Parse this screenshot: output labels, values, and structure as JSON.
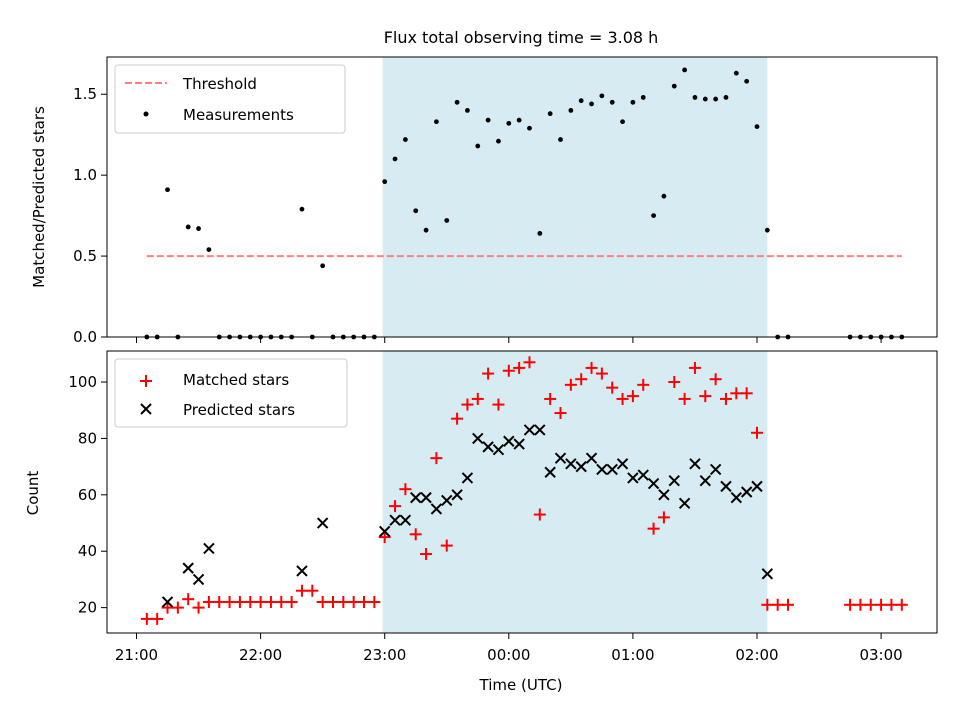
{
  "figure": {
    "title": "Flux total observing time = 3.08 h",
    "xlabel": "Time (UTC)",
    "xticks": [
      "21:00",
      "22:00",
      "23:00",
      "00:00",
      "01:00",
      "02:00",
      "03:00"
    ],
    "shade_color": "#add8e6",
    "shade_range": [
      "22:59",
      "02:05"
    ]
  },
  "chart_data": [
    {
      "type": "scatter",
      "ylabel": "Matched/Predicted stars",
      "ylim": [
        0,
        1.73
      ],
      "yticks": [
        0.0,
        0.5,
        1.0,
        1.5
      ],
      "ytick_labels": [
        "0.0",
        "0.5",
        "1.0",
        "1.5"
      ],
      "legend_position": "top-left",
      "threshold": {
        "name": "Threshold",
        "value": 0.5,
        "x_range": [
          "21:05",
          "03:10"
        ],
        "color": "#ff7f7f",
        "style": "dashed"
      },
      "series": [
        {
          "name": "Measurements",
          "color": "#000000",
          "marker": "dot",
          "x": [
            "21:05",
            "21:10",
            "21:15",
            "21:20",
            "21:25",
            "21:30",
            "21:35",
            "21:40",
            "21:45",
            "21:50",
            "21:55",
            "22:00",
            "22:05",
            "22:10",
            "22:15",
            "22:20",
            "22:25",
            "22:30",
            "22:35",
            "22:40",
            "22:45",
            "22:50",
            "22:55",
            "23:00",
            "23:05",
            "23:10",
            "23:15",
            "23:20",
            "23:25",
            "23:30",
            "23:35",
            "23:40",
            "23:45",
            "23:50",
            "23:55",
            "00:00",
            "00:05",
            "00:10",
            "00:15",
            "00:20",
            "00:25",
            "00:30",
            "00:35",
            "00:40",
            "00:45",
            "00:50",
            "00:55",
            "01:00",
            "01:05",
            "01:10",
            "01:15",
            "01:20",
            "01:25",
            "01:30",
            "01:35",
            "01:40",
            "01:45",
            "01:50",
            "01:55",
            "02:00",
            "02:05",
            "02:10",
            "02:15",
            "02:45",
            "02:50",
            "02:55",
            "03:00",
            "03:05",
            "03:10"
          ],
          "y": [
            0,
            0,
            0.91,
            0,
            0.68,
            0.67,
            0.54,
            0,
            0,
            0,
            0,
            0,
            0,
            0,
            0,
            0.79,
            0,
            0.44,
            0,
            0,
            0,
            0,
            0,
            0.96,
            1.1,
            1.22,
            0.78,
            0.66,
            1.33,
            0.72,
            1.45,
            1.4,
            1.18,
            1.34,
            1.21,
            1.32,
            1.34,
            1.29,
            0.64,
            1.38,
            1.22,
            1.4,
            1.46,
            1.44,
            1.49,
            1.45,
            1.33,
            1.45,
            1.48,
            0.75,
            0.87,
            1.55,
            1.65,
            1.48,
            1.47,
            1.47,
            1.48,
            1.63,
            1.58,
            1.3,
            0.66,
            0,
            0,
            0,
            0,
            0,
            0,
            0,
            0
          ]
        }
      ]
    },
    {
      "type": "scatter",
      "ylabel": "Count",
      "ylim": [
        11,
        111
      ],
      "yticks": [
        20,
        40,
        60,
        80,
        100
      ],
      "ytick_labels": [
        "20",
        "40",
        "60",
        "80",
        "100"
      ],
      "legend_position": "top-left",
      "series": [
        {
          "name": "Matched stars",
          "color": "#ff0000",
          "marker": "plus",
          "x": [
            "21:05",
            "21:10",
            "21:15",
            "21:20",
            "21:25",
            "21:30",
            "21:35",
            "21:40",
            "21:45",
            "21:50",
            "21:55",
            "22:00",
            "22:05",
            "22:10",
            "22:15",
            "22:20",
            "22:25",
            "22:30",
            "22:35",
            "22:40",
            "22:45",
            "22:50",
            "22:55",
            "23:00",
            "23:05",
            "23:10",
            "23:15",
            "23:20",
            "23:25",
            "23:30",
            "23:35",
            "23:40",
            "23:45",
            "23:50",
            "23:55",
            "00:00",
            "00:05",
            "00:10",
            "00:15",
            "00:20",
            "00:25",
            "00:30",
            "00:35",
            "00:40",
            "00:45",
            "00:50",
            "00:55",
            "01:00",
            "01:05",
            "01:10",
            "01:15",
            "01:20",
            "01:25",
            "01:30",
            "01:35",
            "01:40",
            "01:45",
            "01:50",
            "01:55",
            "02:00",
            "02:05",
            "02:10",
            "02:15",
            "02:45",
            "02:50",
            "02:55",
            "03:00",
            "03:05",
            "03:10"
          ],
          "y": [
            16,
            16,
            20,
            20,
            23,
            20,
            22,
            22,
            22,
            22,
            22,
            22,
            22,
            22,
            22,
            26,
            26,
            22,
            22,
            22,
            22,
            22,
            22,
            45,
            56,
            62,
            46,
            39,
            73,
            42,
            87,
            92,
            94,
            103,
            92,
            104,
            105,
            107,
            53,
            94,
            89,
            99,
            101,
            105,
            103,
            98,
            94,
            95,
            99,
            48,
            52,
            100,
            94,
            105,
            95,
            101,
            94,
            96,
            96,
            82,
            21,
            21,
            21,
            21,
            21,
            21,
            21,
            21,
            21
          ]
        },
        {
          "name": "Predicted stars",
          "color": "#000000",
          "marker": "x",
          "x": [
            "21:15",
            "21:25",
            "21:30",
            "21:35",
            "22:20",
            "22:30",
            "23:00",
            "23:05",
            "23:10",
            "23:15",
            "23:20",
            "23:25",
            "23:30",
            "23:35",
            "23:40",
            "23:45",
            "23:50",
            "23:55",
            "00:00",
            "00:05",
            "00:10",
            "00:15",
            "00:20",
            "00:25",
            "00:30",
            "00:35",
            "00:40",
            "00:45",
            "00:50",
            "00:55",
            "01:00",
            "01:05",
            "01:10",
            "01:15",
            "01:20",
            "01:25",
            "01:30",
            "01:35",
            "01:40",
            "01:45",
            "01:50",
            "01:55",
            "02:00",
            "02:05"
          ],
          "y": [
            22,
            34,
            30,
            41,
            33,
            50,
            47,
            51,
            51,
            59,
            59,
            55,
            58,
            60,
            66,
            80,
            77,
            76,
            79,
            78,
            83,
            83,
            68,
            73,
            71,
            70,
            73,
            69,
            69,
            71,
            66,
            67,
            64,
            60,
            65,
            57,
            71,
            65,
            69,
            63,
            59,
            61,
            63,
            32
          ]
        }
      ]
    }
  ]
}
